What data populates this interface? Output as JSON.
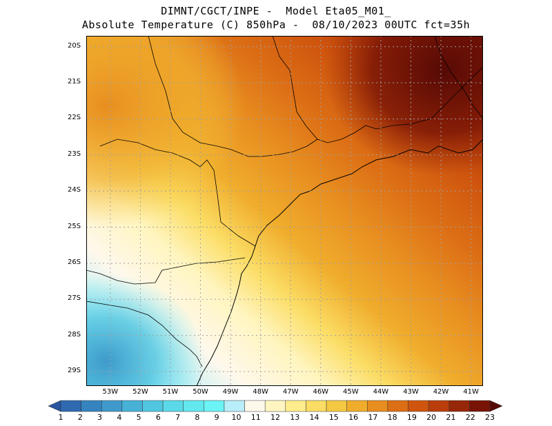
{
  "header": {
    "line1": "DIMNT/CGCT/INPE -  Model Eta05_M01_",
    "line2": "Absolute Temperature (C) 850hPa -  08/10/2023 00UTC fct=35h"
  },
  "map": {
    "lat_ticks": [
      "20S",
      "21S",
      "22S",
      "23S",
      "24S",
      "25S",
      "26S",
      "27S",
      "28S",
      "29S"
    ],
    "lon_ticks": [
      "53W",
      "52W",
      "51W",
      "50W",
      "49W",
      "48W",
      "47W",
      "46W",
      "45W",
      "44W",
      "43W",
      "42W",
      "41W"
    ],
    "lon_range": [
      -53.8,
      -40.6
    ],
    "lat_range": [
      -29.4,
      -19.7
    ],
    "grid": "dotted",
    "gridline_color": "#a0a0a0",
    "border_color": "#000000"
  },
  "colorbar": {
    "labels": [
      "1",
      "2",
      "3",
      "4",
      "5",
      "6",
      "7",
      "8",
      "9",
      "10",
      "11",
      "12",
      "13",
      "14",
      "15",
      "16",
      "17",
      "18",
      "19",
      "20",
      "21",
      "22",
      "23"
    ],
    "colors": [
      "#2a53a0",
      "#2f6ab1",
      "#3584bf",
      "#3f9acb",
      "#47b1d6",
      "#51c6e0",
      "#5bd9e8",
      "#63e8ef",
      "#6cf3f5",
      "#b8eef9",
      "#fef8ec",
      "#fff5c0",
      "#ffec8c",
      "#fbdd65",
      "#f5c842",
      "#f0ad2c",
      "#e88e20",
      "#dc6e15",
      "#cf550e",
      "#b93e0a",
      "#962708",
      "#781406",
      "#560a06"
    ]
  }
}
